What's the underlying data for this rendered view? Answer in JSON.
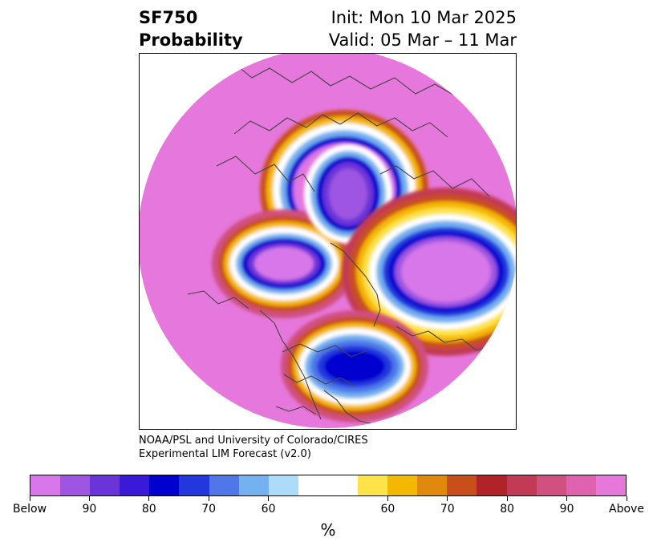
{
  "title": {
    "left_line1": "SF750",
    "left_line2": "Probability",
    "right_line1": "Init: Mon 10 Mar 2025",
    "right_line2": "Valid: 05 Mar – 11 Mar"
  },
  "credit": {
    "line1": "NOAA/PSL and University of Colorado/CIRES",
    "line2": "Experimental LIM Forecast (v2.0)"
  },
  "colorbar": {
    "colors": [
      "#d777ea",
      "#9d55e2",
      "#6a35d8",
      "#3a1ad8",
      "#0000cf",
      "#2337de",
      "#4f77e8",
      "#73b1f0",
      "#addcfb",
      "#ffffff",
      "#ffffff",
      "#ffe349",
      "#f5b800",
      "#e08a0d",
      "#c94f1a",
      "#b12328",
      "#c23a55",
      "#d0507f",
      "#df62ae",
      "#e678dc"
    ],
    "tick_labels": [
      "Below",
      "90",
      "80",
      "70",
      "60",
      "60",
      "70",
      "80",
      "90",
      "Above"
    ],
    "unit_label": "%"
  },
  "map": {
    "background_color": "#e677dc",
    "coast_color": "#444444"
  }
}
